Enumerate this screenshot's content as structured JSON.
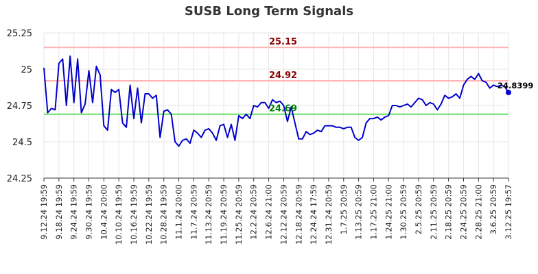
{
  "chart_data": {
    "type": "line",
    "title": "SUSB Long Term Signals",
    "ylim": [
      24.25,
      25.25
    ],
    "yticks": [
      "24.25",
      "24.5",
      "24.75",
      "25",
      "25.25"
    ],
    "ytick_values": [
      24.25,
      24.5,
      24.75,
      25.0,
      25.25
    ],
    "xtick_labels": [
      "9.12.24 19:59",
      "9.18.24 19:59",
      "9.24.24 19:59",
      "9.30.24 19:59",
      "10.4.24 20:00",
      "10.10.24 19:59",
      "10.16.24 19:59",
      "10.22.24 19:59",
      "10.28.24 19:59",
      "11.1.24 20:00",
      "11.7.24 20:59",
      "11.13.24 20:59",
      "11.19.24 20:59",
      "11.25.24 20:59",
      "12.2.24 20:59",
      "12.6.24 21:00",
      "12.12.24 20:59",
      "12.18.24 20:59",
      "12.24.24 17:59",
      "12.31.24 20:59",
      "1.7.25 20:59",
      "1.13.25 20:59",
      "1.17.25 21:00",
      "1.24.25 21:00",
      "1.30.25 20:59",
      "2.5.25 20:59",
      "2.11.25 20:59",
      "2.18.25 20:59",
      "2.24.25 20:59",
      "2.28.25 21:00",
      "3.6.25 20:59",
      "3.12.25 19:57"
    ],
    "xtick_index": [
      0,
      4,
      8,
      12,
      16,
      20,
      24,
      28,
      32,
      36,
      40,
      44,
      48,
      52,
      56,
      60,
      64,
      68,
      72,
      76,
      80,
      84,
      88,
      92,
      96,
      100,
      104,
      108,
      112,
      116,
      120,
      124
    ],
    "grid": true,
    "series": [
      {
        "color": "#0000cc",
        "values": [
          25.01,
          24.7,
          24.73,
          24.72,
          25.04,
          25.07,
          24.75,
          25.09,
          24.77,
          25.07,
          24.7,
          24.76,
          24.99,
          24.77,
          25.02,
          24.96,
          24.61,
          24.58,
          24.86,
          24.84,
          24.86,
          24.63,
          24.6,
          24.89,
          24.66,
          24.87,
          24.63,
          24.83,
          24.83,
          24.8,
          24.82,
          24.53,
          24.71,
          24.72,
          24.69,
          24.5,
          24.47,
          24.51,
          24.52,
          24.49,
          24.58,
          24.56,
          24.53,
          24.58,
          24.59,
          24.56,
          24.51,
          24.61,
          24.62,
          24.53,
          24.62,
          24.51,
          24.68,
          24.66,
          24.69,
          24.66,
          24.75,
          24.74,
          24.77,
          24.77,
          24.73,
          24.79,
          24.77,
          24.78,
          24.75,
          24.64,
          24.74,
          24.63,
          24.52,
          24.52,
          24.57,
          24.55,
          24.56,
          24.58,
          24.57,
          24.61,
          24.61,
          24.61,
          24.6,
          24.6,
          24.59,
          24.6,
          24.6,
          24.53,
          24.51,
          24.53,
          24.63,
          24.66,
          24.66,
          24.67,
          24.65,
          24.67,
          24.68,
          24.75,
          24.75,
          24.74,
          24.75,
          24.76,
          24.74,
          24.77,
          24.8,
          24.79,
          24.75,
          24.77,
          24.76,
          24.72,
          24.76,
          24.82,
          24.8,
          24.81,
          24.83,
          24.8,
          24.89,
          24.93,
          24.95,
          24.93,
          24.97,
          24.92,
          24.91,
          24.87,
          24.89,
          24.88,
          24.89,
          24.88,
          24.8399
        ]
      }
    ],
    "last_point_label": "24.8399",
    "hlines": [
      {
        "value": 25.15,
        "label": "25.15",
        "line_color": "#ffb3b3",
        "text_color": "#8b0000"
      },
      {
        "value": 24.92,
        "label": "24.92",
        "line_color": "#ffb3b3",
        "text_color": "#8b0000"
      },
      {
        "value": 24.69,
        "label": "24.69",
        "line_color": "#66dd66",
        "text_color": "#008000"
      }
    ]
  }
}
